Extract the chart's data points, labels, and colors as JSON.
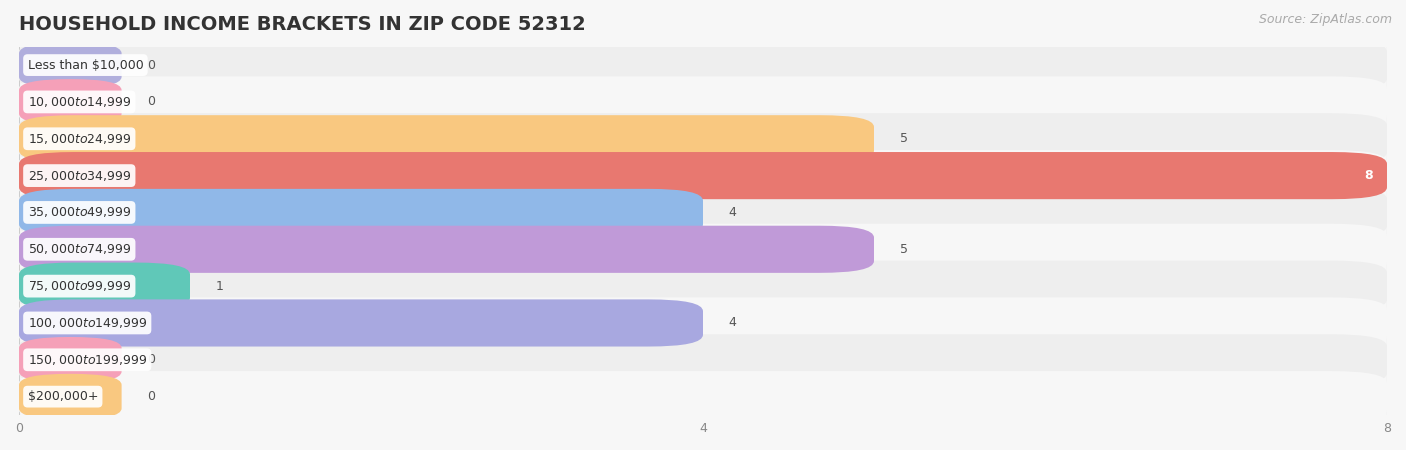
{
  "title": "HOUSEHOLD INCOME BRACKETS IN ZIP CODE 52312",
  "source": "Source: ZipAtlas.com",
  "categories": [
    "Less than $10,000",
    "$10,000 to $14,999",
    "$15,000 to $24,999",
    "$25,000 to $34,999",
    "$35,000 to $49,999",
    "$50,000 to $74,999",
    "$75,000 to $99,999",
    "$100,000 to $149,999",
    "$150,000 to $199,999",
    "$200,000+"
  ],
  "values": [
    0,
    0,
    5,
    8,
    4,
    5,
    1,
    4,
    0,
    0
  ],
  "bar_colors": [
    "#b0aedd",
    "#f5a0b8",
    "#f9c880",
    "#e87870",
    "#90b8e8",
    "#c09ad8",
    "#60c8b8",
    "#a8a8e0",
    "#f5a0b8",
    "#f9c880"
  ],
  "xlim": [
    0,
    8
  ],
  "xticks": [
    0,
    4,
    8
  ],
  "background_color": "#f7f7f7",
  "row_bg_color": "#eeeeee",
  "row_alt_color": "#f7f7f7",
  "title_fontsize": 14,
  "source_fontsize": 9,
  "label_fontsize": 9,
  "value_fontsize": 9,
  "value_white_threshold": 7.5,
  "small_bar_min": 0.6
}
